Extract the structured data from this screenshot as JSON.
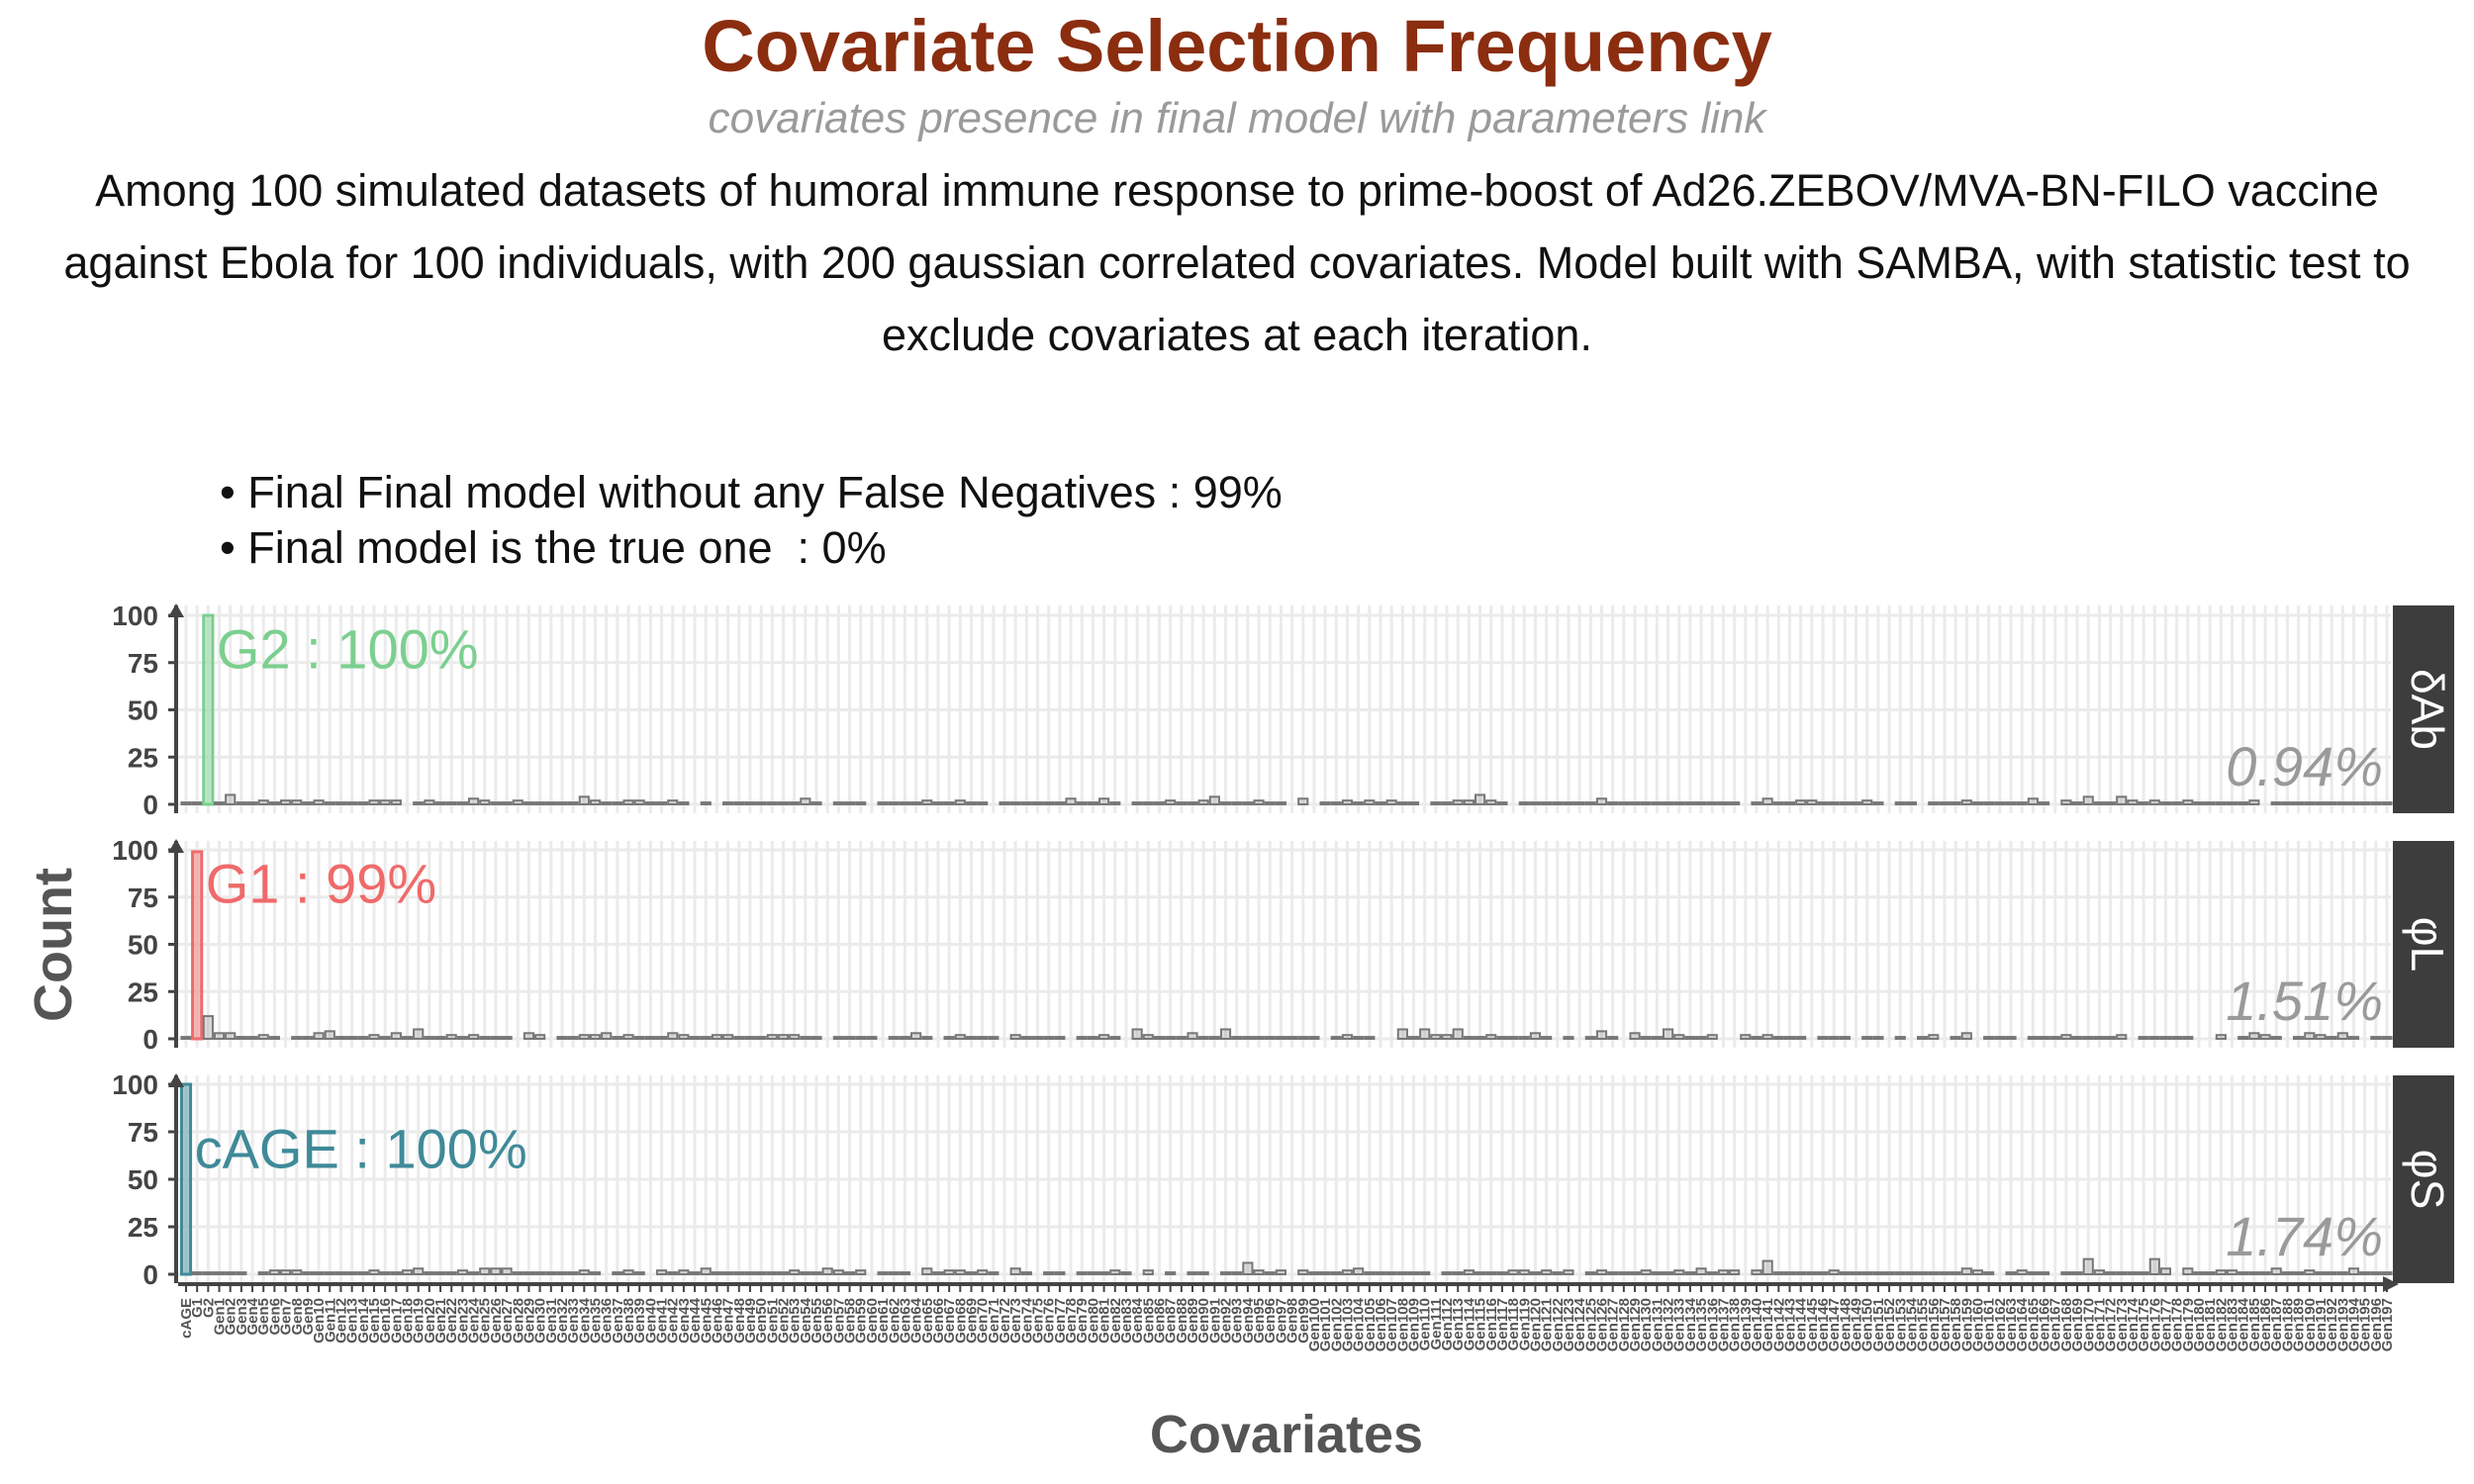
{
  "title": "Covariate Selection Frequency",
  "subtitle": "covariates presence in final model with parameters link",
  "caption": "Among 100 simulated datasets of humoral immune response to prime-boost of Ad26.ZEBOV/MVA-BN-FILO vaccine against Ebola for 100 individuals, with 200 gaussian correlated covariates. Model built with SAMBA, with statistic test to exclude covariates at each iteration.",
  "bullets": [
    "• Final Final model without any False Negatives : 99%",
    "• Final model is the true one  : 0%"
  ],
  "colors": {
    "title": "#8B2D0F",
    "panel_strip": "#3d3d3d",
    "other_bars": "#9a9a9a",
    "delta_ab": "#7ccf8f",
    "phi_l": "#f06a6a",
    "phi_s": "#3f8a99"
  },
  "chart_data": {
    "type": "bar",
    "xlabel": "Covariates",
    "ylabel": "Count",
    "ylim": [
      0,
      100
    ],
    "yticks": [
      0,
      25,
      50,
      75,
      100
    ],
    "grid": true,
    "categories_note": "cAGE, G1, G2, then Gen1 … Gen197 (tick labels as printed)",
    "first_tick_labels": [
      "cAGE",
      "G1",
      "G2"
    ],
    "last_tick_label": "Gen197",
    "panels": [
      {
        "strip_label": "δAb",
        "highlight_covariate": "G2",
        "highlight_value": 100,
        "highlight_label": "G2 : 100%",
        "other_mean_label": "0.94%",
        "other_values_approx": "mostly 0–3, max about 5"
      },
      {
        "strip_label": "φL",
        "highlight_covariate": "G1",
        "highlight_value": 99,
        "highlight_label": "G1 : 99%",
        "secondary_covariate": "G2",
        "secondary_value": 12,
        "other_mean_label": "1.51%",
        "other_values_approx": "mostly 0–3, max about 5"
      },
      {
        "strip_label": "φS",
        "highlight_covariate": "cAGE",
        "highlight_value": 100,
        "highlight_label": "cAGE : 100%",
        "other_mean_label": "1.74%",
        "other_values_approx": "mostly 0–4, max about 8"
      }
    ]
  }
}
